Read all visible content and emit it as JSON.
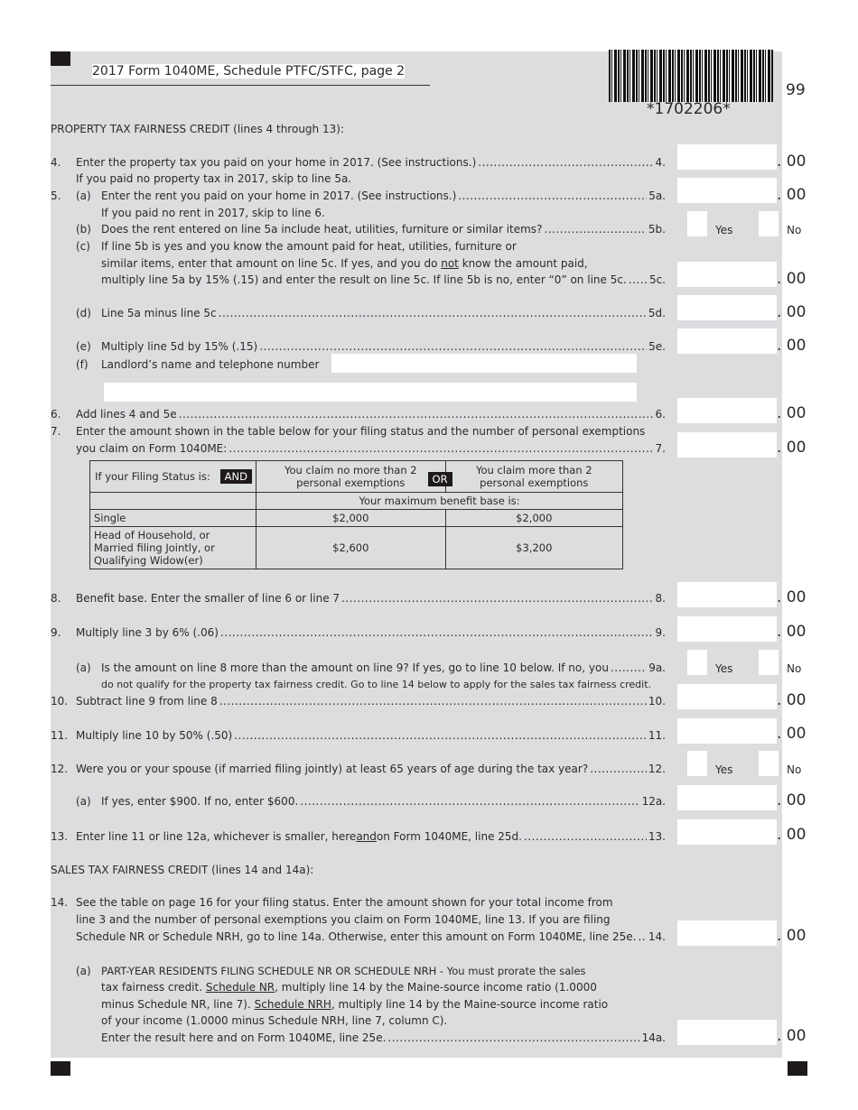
{
  "header": {
    "title": "2017 Form 1040ME, Schedule PTFC/STFC, page 2",
    "barcode_number": "*1702206*",
    "page_code": "99"
  },
  "ptfc": {
    "heading": "PROPERTY TAX FAIRNESS CREDIT",
    "heading_note": " (lines 4 through 13):"
  },
  "stfc": {
    "heading": "SALES TAX FAIRNESS CREDIT",
    "heading_note": " (lines 14 and 14a):"
  },
  "cents": ". 00",
  "yes": "Yes",
  "no": "No",
  "lines": {
    "l4": {
      "num": "4.",
      "text": "Enter the property tax you paid on your home in 2017. (See instructions.)",
      "ref": "4.",
      "note": "If you paid no property tax in 2017, skip to line 5a."
    },
    "l5a": {
      "num": "5.",
      "sub": "(a)",
      "text": "Enter the rent you paid on your home in 2017. (See instructions.)",
      "ref": "5a.",
      "note": "If you paid no rent in 2017, skip to line 6."
    },
    "l5b": {
      "sub": "(b)",
      "text": "Does the rent entered on line 5a include heat, utilities, furniture or similar items?",
      "ref": "5b."
    },
    "l5c": {
      "sub": "(c)",
      "text1": "If line 5b is yes and you know the amount paid for heat, utilities, furniture or",
      "text2a": "similar items, enter that amount on line 5c. If yes, and you do ",
      "text2u": "not",
      "text2b": " know the amount paid,",
      "text3": "multiply line 5a by 15% (.15) and enter the result on line 5c. If line 5b is no, enter “0” on line 5c.",
      "ref": "5c."
    },
    "l5d": {
      "sub": "(d)",
      "text": "Line 5a minus line 5c",
      "ref": "5d."
    },
    "l5e": {
      "sub": "(e)",
      "text": "Multiply line 5d by 15% (.15)",
      "ref": "5e."
    },
    "l5f": {
      "sub": "(f)",
      "text": "Landlord’s name and telephone number"
    },
    "l6": {
      "num": "6.",
      "text": "Add lines 4 and 5e",
      "ref": "6."
    },
    "l7": {
      "num": "7.",
      "text1": "Enter the amount shown in the table below for your filing status and the number of personal exemptions",
      "text2": "you claim on Form 1040ME:",
      "ref": "7."
    },
    "l8": {
      "num": "8.",
      "text": "Benefit base. Enter the smaller of line 6 or line 7",
      "ref": "8."
    },
    "l9": {
      "num": "9.",
      "text": "Multiply line 3 by 6% (.06)",
      "ref": "9."
    },
    "l9a": {
      "sub": "(a)",
      "text": "Is the amount on line 8 more than the amount on line 9? If yes, go to line 10 below. If no, you",
      "ref": "9a.",
      "note": "do not qualify for the property tax fairness credit. Go to line 14 below to apply for the sales tax fairness credit."
    },
    "l10": {
      "num": "10.",
      "text": "Subtract line 9 from line 8",
      "ref": "10."
    },
    "l11": {
      "num": "11.",
      "text": "Multiply line 10 by 50% (.50)",
      "ref": "11."
    },
    "l12": {
      "num": "12.",
      "text": "Were you or your spouse (if married filing jointly) at least 65 years of age during the tax year?",
      "ref": "12."
    },
    "l12a": {
      "sub": "(a)",
      "text": "If yes, enter $900. If no, enter $600.",
      "ref": "12a."
    },
    "l13": {
      "num": "13.",
      "texta": "Enter line 11 or line 12a, whichever is smaller, here ",
      "textu": "and",
      "textb": " on Form 1040ME, line 25d.",
      "ref": "13."
    },
    "l14": {
      "num": "14.",
      "text1": "See the table on page 16 for your filing status. Enter the amount shown for your total income from",
      "text2": "line 3 and the number of personal exemptions you claim on Form 1040ME, line 13. If you are filing",
      "text3": "Schedule NR or Schedule NRH, go to line 14a. Otherwise, enter this amount on Form 1040ME, line 25e.",
      "ref": "14."
    },
    "l14a": {
      "sub": "(a)",
      "text1": "PART-YEAR RESIDENTS FILING SCHEDULE NR OR SCHEDULE NRH - You must prorate the sales",
      "t2a": "tax fairness credit. ",
      "t2u": "Schedule NR",
      "t2b": ", multiply line 14 by the Maine-source income ratio (1.0000",
      "t3a": "minus Schedule NR, line 7). ",
      "t3u": "Schedule NRH",
      "t3b": ", multiply line 14 by the Maine-source income ratio",
      "text4": "of your income (1.0000 minus Schedule NRH, line 7, column C).",
      "text5": "Enter the result here and on Form 1040ME, line 25e.",
      "ref": "14a."
    }
  },
  "table": {
    "filing_status_label": "If your Filing Status is:",
    "and": "AND",
    "or": "OR",
    "col1": "You claim no more than 2 personal exemptions",
    "col2": "You claim more than 2 personal exemptions",
    "subheader": "Your maximum benefit base is:",
    "rows": [
      {
        "status": "Single",
        "col1": "$2,000",
        "col2": "$2,000"
      },
      {
        "status": "Head of Household, or Married filing Jointly, or Qualifying Widow(er)",
        "col1": "$2,600",
        "col2": "$3,200"
      }
    ]
  }
}
